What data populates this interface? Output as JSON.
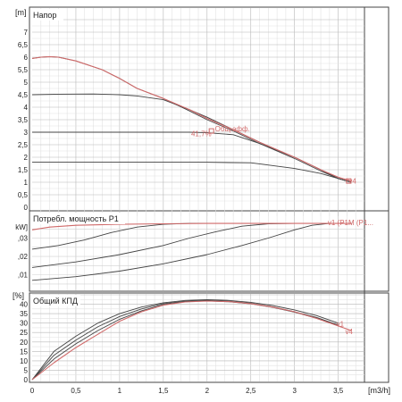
{
  "chart_data": [
    {
      "type": "line",
      "title": "Напор",
      "yunit": "[m]",
      "xunit": "[m3/h]",
      "xlim": [
        0,
        3.8
      ],
      "ylim": [
        0,
        7.5
      ],
      "yticks": [
        0,
        0.5,
        1,
        1.5,
        2,
        2.5,
        3,
        3.5,
        4,
        4.5,
        5,
        5.5,
        6,
        6.5,
        7
      ],
      "grid": true,
      "series": [
        {
          "name": "",
          "color": "#d06a6a",
          "x": [
            0,
            0.1,
            0.2,
            0.3,
            0.5,
            0.8,
            1.0,
            1.2,
            1.5,
            1.8,
            2.0,
            2.3,
            2.6,
            3.0,
            3.3,
            3.5,
            3.6,
            3.65
          ],
          "y": [
            5.95,
            6.0,
            6.02,
            6.0,
            5.85,
            5.5,
            5.15,
            4.75,
            4.35,
            3.9,
            3.55,
            3.1,
            2.6,
            2.0,
            1.5,
            1.2,
            1.1,
            1.05
          ]
        },
        {
          "name": "",
          "color": "#444444",
          "x": [
            0,
            0.1,
            0.2,
            0.3,
            0.5,
            0.8,
            1.0,
            1.2,
            1.5,
            1.8,
            2.0,
            2.3,
            2.6,
            3.0,
            3.3,
            3.5,
            3.6,
            3.65
          ],
          "y": [
            5.95,
            6.0,
            6.02,
            6.0,
            5.85,
            5.5,
            5.15,
            4.75,
            4.35,
            3.85,
            3.5,
            3.05,
            2.55,
            1.95,
            1.45,
            1.15,
            1.05,
            1.0
          ]
        },
        {
          "name": "",
          "color": "#444444",
          "x": [
            0,
            0.3,
            0.7,
            1.0,
            1.2,
            1.5,
            1.8,
            2.0,
            2.3,
            2.6,
            3.0,
            3.3,
            3.5,
            3.65
          ],
          "y": [
            4.5,
            4.52,
            4.53,
            4.5,
            4.45,
            4.3,
            3.9,
            3.6,
            3.1,
            2.6,
            2.0,
            1.5,
            1.15,
            1.0
          ]
        },
        {
          "name": "",
          "color": "#444444",
          "x": [
            0,
            0.5,
            1.0,
            1.5,
            1.8,
            2.0,
            2.3,
            2.6,
            3.0,
            3.3,
            3.5,
            3.65
          ],
          "y": [
            3.0,
            3.0,
            3.0,
            3.0,
            3.0,
            2.98,
            2.9,
            2.55,
            2.0,
            1.5,
            1.15,
            1.0
          ]
        },
        {
          "name": "",
          "color": "#444444",
          "x": [
            0,
            0.5,
            1.0,
            1.5,
            2.0,
            2.5,
            3.0,
            3.3,
            3.5,
            3.65
          ],
          "y": [
            1.8,
            1.8,
            1.8,
            1.8,
            1.8,
            1.78,
            1.55,
            1.35,
            1.15,
            1.0
          ]
        }
      ],
      "annotations": [
        {
          "text": "Общ.эфф.",
          "x": 2.05,
          "y": 3.15,
          "color": "#d06a6a"
        },
        {
          "text": "41,7%",
          "x": 2.05,
          "y": 2.95,
          "color": "#d06a6a"
        },
        {
          "text": "v4",
          "x": 3.62,
          "y": 1.05,
          "color": "#d06a6a"
        }
      ]
    },
    {
      "type": "line",
      "title": "Потребл. мощность P1",
      "ylabels": [
        "kW]",
        ",03",
        ",02",
        ",01"
      ],
      "xlim": [
        0,
        3.8
      ],
      "grid": true,
      "series": [
        {
          "name": "",
          "color": "#d06a6a",
          "x": [
            0,
            0.2,
            0.5,
            1.0,
            1.5,
            2.0,
            2.5,
            3.0,
            3.5,
            3.65
          ],
          "y": [
            0.0345,
            0.036,
            0.037,
            0.0375,
            0.0378,
            0.038,
            0.038,
            0.038,
            0.038,
            0.038
          ]
        },
        {
          "name": "",
          "color": "#444444",
          "x": [
            0,
            0.3,
            0.6,
            0.9,
            1.2,
            1.5,
            1.8,
            2.0,
            2.5,
            3.0,
            3.5,
            3.65
          ],
          "y": [
            0.024,
            0.026,
            0.029,
            0.033,
            0.036,
            0.0375,
            0.038,
            0.038,
            0.038,
            0.038,
            0.038,
            0.038
          ]
        },
        {
          "name": "",
          "color": "#444444",
          "x": [
            0,
            0.5,
            1.0,
            1.5,
            1.8,
            2.1,
            2.4,
            2.7,
            3.0,
            3.5,
            3.65
          ],
          "y": [
            0.014,
            0.017,
            0.021,
            0.026,
            0.03,
            0.0335,
            0.0365,
            0.0378,
            0.038,
            0.038,
            0.038
          ]
        },
        {
          "name": "",
          "color": "#444444",
          "x": [
            0,
            0.5,
            1.0,
            1.5,
            2.0,
            2.4,
            2.7,
            3.0,
            3.2,
            3.4,
            3.65
          ],
          "y": [
            0.007,
            0.009,
            0.012,
            0.016,
            0.021,
            0.026,
            0.03,
            0.0345,
            0.037,
            0.038,
            0.038
          ]
        }
      ],
      "annotations": [
        {
          "text": "v1 (P1M (P1...",
          "x": 3.38,
          "y": 0.0385,
          "color": "#d06a6a"
        }
      ]
    },
    {
      "type": "line",
      "title": "Общий КПД",
      "yunit": "[%]",
      "xlabel": "[m3/h]",
      "xlim": [
        0,
        3.8
      ],
      "ylim": [
        0,
        45
      ],
      "yticks": [
        0,
        5,
        10,
        15,
        20,
        25,
        30,
        35,
        40
      ],
      "xticks": [
        0,
        0.5,
        1,
        1.5,
        2,
        2.5,
        3,
        3.5
      ],
      "xticklabels": [
        "0",
        "0,5",
        "1",
        "1,5",
        "2",
        "2,5",
        "3",
        "3,5"
      ],
      "grid": true,
      "series": [
        {
          "name": "",
          "color": "#d06a6a",
          "x": [
            0,
            0.25,
            0.5,
            0.75,
            1.0,
            1.25,
            1.5,
            1.75,
            2.0,
            2.25,
            2.5,
            2.75,
            3.0,
            3.25,
            3.5,
            3.65
          ],
          "y": [
            0,
            9,
            17,
            24,
            31,
            36,
            39.5,
            41.2,
            41.7,
            41.4,
            40.3,
            38.5,
            36,
            32.5,
            28.5,
            26
          ]
        },
        {
          "name": "",
          "color": "#444444",
          "x": [
            0,
            0.25,
            0.5,
            0.75,
            1.0,
            1.25,
            1.5,
            1.75,
            2.0,
            2.25,
            2.5,
            2.75,
            3.0,
            3.25,
            3.5
          ],
          "y": [
            0,
            13,
            21,
            28,
            33.5,
            37.5,
            40.3,
            41.6,
            42.0,
            41.6,
            40.5,
            38.5,
            36,
            33,
            29
          ]
        },
        {
          "name": "",
          "color": "#444444",
          "x": [
            0,
            0.25,
            0.5,
            0.75,
            1.0,
            1.25,
            1.5,
            1.75,
            2.0,
            2.25,
            2.5,
            2.75,
            3.0,
            3.25,
            3.5
          ],
          "y": [
            0,
            15,
            23,
            30,
            35,
            38.5,
            40.8,
            42.0,
            42.4,
            42.0,
            41.0,
            39.3,
            37,
            34,
            30
          ]
        },
        {
          "name": "",
          "color": "#444444",
          "x": [
            0,
            0.25,
            0.5,
            0.75,
            1.0,
            1.25,
            1.5,
            1.75,
            2.0,
            2.25,
            2.5,
            2.75,
            3.0,
            3.25,
            3.5
          ],
          "y": [
            0,
            11,
            19,
            26,
            32,
            36.5,
            39.8,
            41.3,
            41.8,
            41.3,
            40.2,
            38.3,
            35.8,
            32.6,
            28.8
          ]
        }
      ],
      "annotations": [
        {
          "text": "v1",
          "x": 3.48,
          "y": 29.5,
          "color": "#d06a6a"
        },
        {
          "text": "v4",
          "x": 3.58,
          "y": 25.5,
          "color": "#d06a6a"
        }
      ]
    }
  ]
}
